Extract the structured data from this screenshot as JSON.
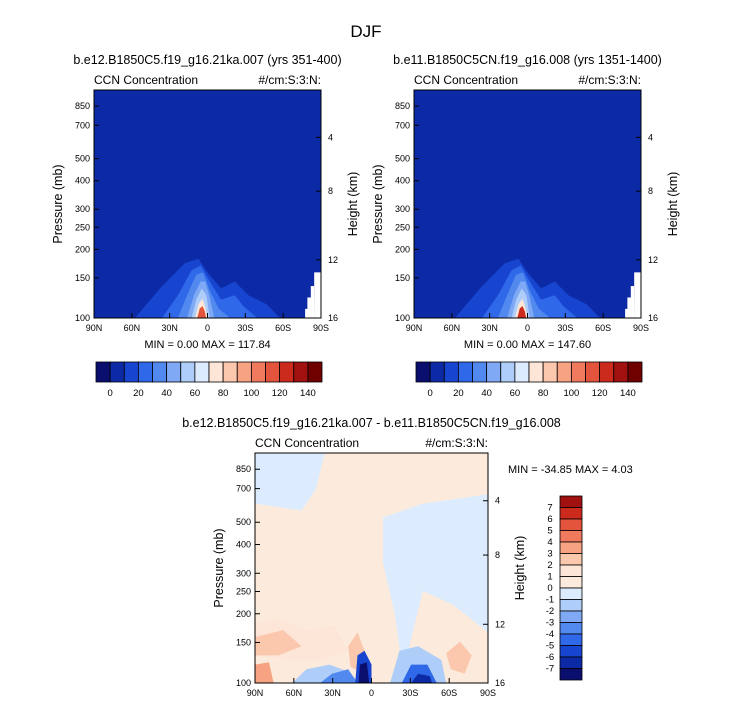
{
  "figure": {
    "title": "DJF"
  },
  "chart_data": [
    {
      "type": "heatmap",
      "panel": "top-left",
      "title": "b.e12.B1850C5.f19_g16.21ka.007 (yrs 351-400)",
      "variable": "CCN Concentration",
      "units": "#/cm:S:3:N:",
      "xlabel": "",
      "ylabel": "Pressure (mb)",
      "ylabel_right": "Height (km)",
      "x_ticks": [
        "90N",
        "60N",
        "30N",
        "0",
        "30S",
        "60S",
        "90S"
      ],
      "y_ticks": [
        "100",
        "150",
        "200",
        "250",
        "300",
        "400",
        "500",
        "700",
        "850"
      ],
      "y_ticks_right": [
        "16",
        "12",
        "8",
        "4"
      ],
      "ylim": [
        1000,
        100
      ],
      "stats": "MIN =   0.00   MAX = 117.84",
      "colorbar": {
        "levels": [
          "0",
          "20",
          "40",
          "60",
          "80",
          "100",
          "120",
          "140"
        ],
        "colors": [
          "#0a0f6e",
          "#0d2aa6",
          "#1745d0",
          "#2f68e8",
          "#5289ef",
          "#7fa9f5",
          "#aecdf9",
          "#dcebfd",
          "#fde6d8",
          "#fbc8ad",
          "#f6a283",
          "#ef7a5d",
          "#e4543c",
          "#cd2a1e",
          "#a0110f",
          "#700000"
        ]
      },
      "peak_color": "#e4543c"
    },
    {
      "type": "heatmap",
      "panel": "top-right",
      "title": "b.e11.B1850C5CN.f19_g16.008 (yrs 1351-1400)",
      "variable": "CCN Concentration",
      "units": "#/cm:S:3:N:",
      "xlabel": "",
      "ylabel": "Pressure (mb)",
      "ylabel_right": "Height (km)",
      "x_ticks": [
        "90N",
        "60N",
        "30N",
        "0",
        "30S",
        "60S",
        "90S"
      ],
      "y_ticks": [
        "100",
        "150",
        "200",
        "250",
        "300",
        "400",
        "500",
        "700",
        "850"
      ],
      "y_ticks_right": [
        "16",
        "12",
        "8",
        "4"
      ],
      "ylim": [
        1000,
        100
      ],
      "stats": "MIN =   0.00   MAX = 147.60",
      "colorbar": {
        "levels": [
          "0",
          "20",
          "40",
          "60",
          "80",
          "100",
          "120",
          "140"
        ],
        "colors": [
          "#0a0f6e",
          "#0d2aa6",
          "#1745d0",
          "#2f68e8",
          "#5289ef",
          "#7fa9f5",
          "#aecdf9",
          "#dcebfd",
          "#fde6d8",
          "#fbc8ad",
          "#f6a283",
          "#ef7a5d",
          "#e4543c",
          "#cd2a1e",
          "#a0110f",
          "#700000"
        ]
      },
      "peak_color": "#cd2a1e"
    },
    {
      "type": "heatmap",
      "panel": "bottom",
      "title": "b.e12.B1850C5.f19_g16.21ka.007 - b.e11.B1850C5CN.f19_g16.008",
      "variable": "CCN Concentration",
      "units": "#/cm:S:3:N:",
      "xlabel": "",
      "ylabel": "Pressure (mb)",
      "ylabel_right": "Height (km)",
      "x_ticks": [
        "90N",
        "60N",
        "30N",
        "0",
        "30S",
        "60S",
        "90S"
      ],
      "y_ticks": [
        "100",
        "150",
        "200",
        "250",
        "300",
        "400",
        "500",
        "700",
        "850"
      ],
      "y_ticks_right": [
        "16",
        "12",
        "8",
        "4"
      ],
      "ylim": [
        1000,
        100
      ],
      "stats": "MIN = -34.85  MAX =   4.03",
      "colorbar": {
        "levels": [
          "7",
          "6",
          "5",
          "4",
          "3",
          "2",
          "1",
          "0",
          "-1",
          "-2",
          "-3",
          "-4",
          "-5",
          "-6",
          "-7"
        ],
        "colors": [
          "#a0110f",
          "#cd2a1e",
          "#e4543c",
          "#ef7a5d",
          "#f6a283",
          "#fbc8ad",
          "#fde6d8",
          "#fcebdc",
          "#dcebfd",
          "#aecdf9",
          "#7fa9f5",
          "#5289ef",
          "#2f68e8",
          "#1745d0",
          "#0d2aa6",
          "#0a0f6e"
        ]
      }
    }
  ]
}
